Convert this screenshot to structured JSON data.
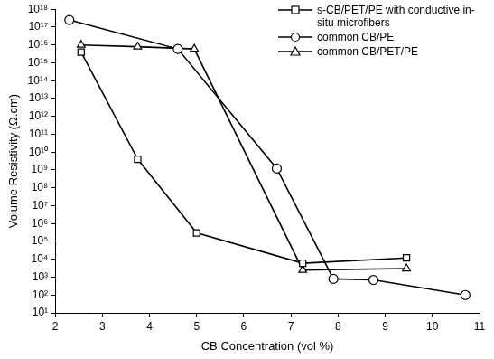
{
  "chart_data": {
    "type": "line",
    "x_label": "CB Concentration (vol %)",
    "y_label": "Volume Resistivity (Ω.cm)",
    "log": "y",
    "grid": false,
    "legend": "upper right",
    "xlim": [
      2,
      11
    ],
    "xticks": [
      2,
      3,
      4,
      5,
      6,
      7,
      8,
      9,
      10,
      11
    ],
    "ylim": [
      10,
      1e+18
    ],
    "yticks": [
      {
        "value": 10,
        "label": "10¹"
      },
      {
        "value": 100,
        "label": "10²"
      },
      {
        "value": 1000,
        "label": "10³"
      },
      {
        "value": 10000,
        "label": "10⁴"
      },
      {
        "value": 100000,
        "label": "10⁵"
      },
      {
        "value": 1000000,
        "label": "10⁶"
      },
      {
        "value": 10000000,
        "label": "10⁷"
      },
      {
        "value": 100000000,
        "label": "10⁸"
      },
      {
        "value": 1000000000,
        "label": "10⁹"
      },
      {
        "value": 10000000000,
        "label": "10¹⁰"
      },
      {
        "value": 100000000000,
        "label": "10¹¹"
      },
      {
        "value": 1000000000000,
        "label": "10¹²"
      },
      {
        "value": 10000000000000,
        "label": "10¹³"
      },
      {
        "value": 100000000000000,
        "label": "10¹⁴"
      },
      {
        "value": 1000000000000000,
        "label": "10¹⁵"
      },
      {
        "value": 10000000000000000,
        "label": "10¹⁶"
      },
      {
        "value": 100000000000000000,
        "label": "10¹⁷"
      },
      {
        "value": 1000000000000000000,
        "label": "10¹⁸"
      }
    ],
    "series": [
      {
        "name": "s-CB/PET/PE with conductive in-situ microfibers",
        "color": "#000000",
        "marker": "square",
        "x": [
          2.55,
          3.75,
          5.0,
          7.25,
          9.45
        ],
        "values": [
          4000000000000000.0,
          4000000000.0,
          300000.0,
          6000.0,
          12000.0
        ]
      },
      {
        "name": "common CB/PE",
        "color": "#000000",
        "marker": "circle",
        "x": [
          2.3,
          4.6,
          6.7,
          7.9,
          8.75,
          10.7
        ],
        "values": [
          2.5e+17,
          6000000000000000.0,
          1200000000.0,
          800,
          700,
          100
        ]
      },
      {
        "name": "common CB/PET/PE",
        "color": "#000000",
        "marker": "triangle",
        "x": [
          2.55,
          3.75,
          4.95,
          7.25,
          9.45
        ],
        "values": [
          1e+16,
          8000000000000000.0,
          6000000000000000.0,
          2500,
          3000
        ]
      }
    ]
  }
}
